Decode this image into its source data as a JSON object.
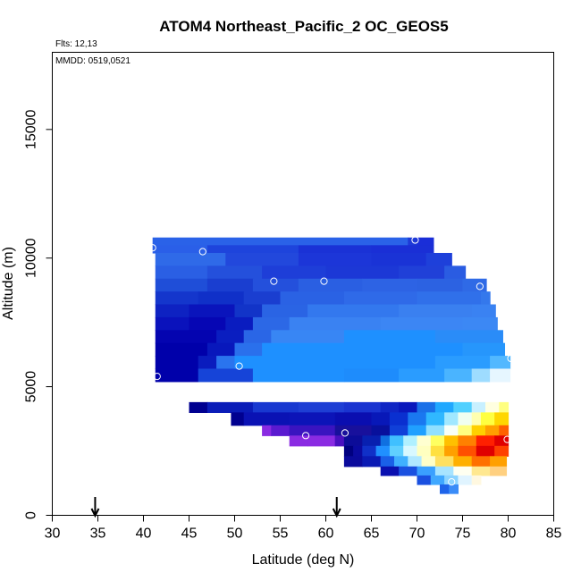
{
  "chart_data": {
    "type": "heatmap",
    "title": "ATOM4 Northeast_Pacific_2 OC_GEOS5",
    "flights_note": "Flts: 12,13",
    "dates_note": "MMDD: 0519,0521",
    "xlabel": "Latitude (deg N)",
    "ylabel": "Altitude (m)",
    "xlim": [
      30,
      85
    ],
    "ylim": [
      0,
      18000
    ],
    "x_ticks": [
      "30",
      "35",
      "40",
      "45",
      "50",
      "55",
      "60",
      "65",
      "70",
      "75",
      "80",
      "85"
    ],
    "y_ticks": [
      "0",
      "5000",
      "10000",
      "15000"
    ],
    "grid": false,
    "legend": "none",
    "arrows_lat": [
      34.7,
      61.2
    ],
    "bands": [
      {
        "y": 10500,
        "h": 300,
        "cells": [
          [
            41,
            69,
            "#2a62e8"
          ],
          [
            69,
            70,
            "#1e3ad8"
          ],
          [
            70,
            71.8,
            "#1a2ed8"
          ]
        ]
      },
      {
        "y": 10200,
        "h": 300,
        "cells": [
          [
            41,
            47,
            "#2a5fe8"
          ],
          [
            47,
            57,
            "#1e44dc"
          ],
          [
            57,
            65,
            "#1a32d6"
          ],
          [
            65,
            71.8,
            "#1a2fd6"
          ]
        ]
      },
      {
        "y": 9700,
        "h": 500,
        "cells": [
          [
            41.3,
            49,
            "#2f6ae8"
          ],
          [
            49,
            57,
            "#2248dc"
          ],
          [
            57,
            65,
            "#1c36d8"
          ],
          [
            65,
            71,
            "#1a33d6"
          ],
          [
            71,
            73.8,
            "#1e40da"
          ]
        ]
      },
      {
        "y": 9200,
        "h": 500,
        "cells": [
          [
            41.3,
            47,
            "#2a5fe4"
          ],
          [
            47,
            53,
            "#2450dc"
          ],
          [
            53,
            60,
            "#1e3ed8"
          ],
          [
            60,
            68,
            "#1c38d6"
          ],
          [
            68,
            73,
            "#2040d8"
          ],
          [
            73,
            75.3,
            "#2a5ce2"
          ]
        ]
      },
      {
        "y": 8700,
        "h": 500,
        "cells": [
          [
            41.3,
            47,
            "#1f4ed8"
          ],
          [
            47,
            52,
            "#1a3ed0"
          ],
          [
            52,
            57,
            "#2450dc"
          ],
          [
            57,
            64,
            "#2a5fe2"
          ],
          [
            64,
            70,
            "#2d63e4"
          ],
          [
            70,
            75,
            "#2c62e2"
          ],
          [
            75,
            77.6,
            "#2f6ae6"
          ]
        ]
      },
      {
        "y": 8200,
        "h": 500,
        "cells": [
          [
            41.3,
            46,
            "#1436cc"
          ],
          [
            46,
            51,
            "#1030c8"
          ],
          [
            51,
            55,
            "#1a3ed0"
          ],
          [
            55,
            62,
            "#2a62e4"
          ],
          [
            62,
            70,
            "#2f6ae8"
          ],
          [
            70,
            77,
            "#3070ea"
          ],
          [
            77,
            78,
            "#3478ec"
          ]
        ]
      },
      {
        "y": 7700,
        "h": 500,
        "cells": [
          [
            41.3,
            45,
            "#0e22c2"
          ],
          [
            45,
            50,
            "#0a14bc"
          ],
          [
            50,
            53,
            "#1234c8"
          ],
          [
            53,
            58,
            "#2a64e4"
          ],
          [
            58,
            68,
            "#3378ee"
          ],
          [
            68,
            76,
            "#3a80f0"
          ],
          [
            76,
            78.6,
            "#3a82f2"
          ]
        ]
      },
      {
        "y": 7200,
        "h": 500,
        "cells": [
          [
            41.3,
            45,
            "#0a12bc"
          ],
          [
            45,
            49,
            "#0606b4"
          ],
          [
            49,
            52,
            "#0a1cc0"
          ],
          [
            52,
            56,
            "#2c68e6"
          ],
          [
            56,
            66,
            "#3a82f2"
          ],
          [
            66,
            75,
            "#3c86f4"
          ],
          [
            75,
            78.8,
            "#3c88f4"
          ]
        ]
      },
      {
        "y": 6700,
        "h": 500,
        "cells": [
          [
            41.3,
            48,
            "#0404b0"
          ],
          [
            48,
            51,
            "#0a1ec0"
          ],
          [
            51,
            54,
            "#2a66e6"
          ],
          [
            54,
            62,
            "#3886f4"
          ],
          [
            62,
            72,
            "#1e90ff"
          ],
          [
            72,
            79.4,
            "#2a8cf8"
          ]
        ]
      },
      {
        "y": 6200,
        "h": 500,
        "cells": [
          [
            41.3,
            47,
            "#0000aa"
          ],
          [
            47,
            50,
            "#0818bc"
          ],
          [
            50,
            53,
            "#2a70ec"
          ],
          [
            53,
            62,
            "#1e90ff"
          ],
          [
            62,
            75,
            "#1e90ff"
          ],
          [
            75,
            79.6,
            "#2696fc"
          ]
        ]
      },
      {
        "y": 5700,
        "h": 500,
        "cells": [
          [
            41.3,
            46,
            "#0000aa"
          ],
          [
            46,
            48,
            "#0a1cbe"
          ],
          [
            48,
            50,
            "#2a74ee"
          ],
          [
            50,
            62,
            "#1e90ff"
          ],
          [
            62,
            72,
            "#1e90ff"
          ],
          [
            72,
            78,
            "#2a9cff"
          ],
          [
            78,
            80.2,
            "#52b8ff"
          ]
        ]
      },
      {
        "y": 5200,
        "h": 500,
        "cells": [
          [
            41.3,
            46,
            "#0000aa"
          ],
          [
            46,
            52,
            "#1644d8"
          ],
          [
            52,
            62,
            "#1e90ff"
          ],
          [
            62,
            68,
            "#1e8cfc"
          ],
          [
            68,
            73,
            "#2a9cff"
          ],
          [
            73,
            76,
            "#4ab4ff"
          ],
          [
            76,
            78,
            "#9edcff"
          ],
          [
            78,
            80.2,
            "#e6f6ff"
          ]
        ]
      },
      {
        "y": 4000,
        "h": 400,
        "cells": [
          [
            45,
            47,
            "#000090"
          ],
          [
            47,
            52,
            "#0a1cb8"
          ],
          [
            52,
            57,
            "#1838d0"
          ],
          [
            57,
            62,
            "#1e3ed4"
          ],
          [
            62,
            66,
            "#1a34d0"
          ],
          [
            66,
            68,
            "#1026c4"
          ],
          [
            68,
            70,
            "#0a18bc"
          ],
          [
            70,
            72,
            "#1a70e8"
          ],
          [
            72,
            74,
            "#20a8ff"
          ],
          [
            74,
            76,
            "#50d0ff"
          ],
          [
            76,
            77.5,
            "#c8f0ff"
          ],
          [
            77.5,
            79,
            "#ffffe0"
          ],
          [
            79,
            80,
            "#ffff80"
          ]
        ]
      },
      {
        "y": 3500,
        "h": 500,
        "cells": [
          [
            49.6,
            51,
            "#000090"
          ],
          [
            51,
            56,
            "#0a12b4"
          ],
          [
            56,
            61,
            "#0c14b8"
          ],
          [
            61,
            65,
            "#0a0eb0"
          ],
          [
            65,
            67,
            "#0818b8"
          ],
          [
            67,
            69,
            "#0a30d0"
          ],
          [
            69,
            71,
            "#1a78f0"
          ],
          [
            71,
            73,
            "#30b8ff"
          ],
          [
            73,
            74.5,
            "#a0e8ff"
          ],
          [
            74.5,
            76,
            "#f0fff0"
          ],
          [
            76,
            77,
            "#ffffb0"
          ],
          [
            77,
            78.5,
            "#ffff40"
          ],
          [
            78.5,
            80,
            "#ffd700"
          ]
        ]
      },
      {
        "y": 3100,
        "h": 400,
        "cells": [
          [
            53,
            54,
            "#8a2be2"
          ],
          [
            54,
            56,
            "#5a1ad0"
          ],
          [
            56,
            61,
            "#3a14c0"
          ],
          [
            61,
            65,
            "#18109c"
          ],
          [
            65,
            67,
            "#08109c"
          ],
          [
            67,
            69,
            "#1040d8"
          ],
          [
            69,
            71,
            "#20a0ff"
          ],
          [
            71,
            73,
            "#90e0ff"
          ],
          [
            73,
            74.5,
            "#f8fff8"
          ],
          [
            74.5,
            76,
            "#ffff80"
          ],
          [
            76,
            77.5,
            "#ffd000"
          ],
          [
            77.5,
            79,
            "#ffa000"
          ],
          [
            79,
            80,
            "#ff6000"
          ]
        ]
      },
      {
        "y": 2700,
        "h": 400,
        "cells": [
          [
            56,
            58,
            "#8a2be2"
          ],
          [
            58,
            61,
            "#8a2be2"
          ],
          [
            61,
            62,
            "#4a10c0"
          ],
          [
            62,
            64,
            "#0c0c98"
          ],
          [
            64,
            66,
            "#0820b0"
          ],
          [
            66,
            67,
            "#1070e0"
          ],
          [
            67,
            68.5,
            "#40c0ff"
          ],
          [
            68.5,
            70,
            "#b0f0ff"
          ],
          [
            70,
            71.5,
            "#ffffd0"
          ],
          [
            71.5,
            73,
            "#ffff60"
          ],
          [
            73,
            74.5,
            "#ffc000"
          ],
          [
            74.5,
            76.5,
            "#ff8000"
          ],
          [
            76.5,
            78.5,
            "#ff2000"
          ],
          [
            78.5,
            80,
            "#e00000"
          ]
        ]
      },
      {
        "y": 2300,
        "h": 400,
        "cells": [
          [
            62,
            63,
            "#000080"
          ],
          [
            63,
            64,
            "#0a0aa0"
          ],
          [
            64,
            65.5,
            "#1030c8"
          ],
          [
            65.5,
            67,
            "#2090ff"
          ],
          [
            67,
            68.5,
            "#60d0ff"
          ],
          [
            68.5,
            70,
            "#d8f8ff"
          ],
          [
            70,
            71.5,
            "#ffffc0"
          ],
          [
            71.5,
            73,
            "#ffe040"
          ],
          [
            73,
            74.5,
            "#ffa000"
          ],
          [
            74.5,
            76.5,
            "#ff5000"
          ],
          [
            76.5,
            78.5,
            "#e00000"
          ],
          [
            78.5,
            80,
            "#ff4000"
          ]
        ]
      },
      {
        "y": 1900,
        "h": 400,
        "cells": [
          [
            62,
            64,
            "#0a0a9c"
          ],
          [
            64,
            66,
            "#0a1ab4"
          ],
          [
            66,
            67.5,
            "#1a60e8"
          ],
          [
            67.5,
            69,
            "#40b0ff"
          ],
          [
            69,
            70.5,
            "#b0e8ff"
          ],
          [
            70.5,
            72,
            "#ffffc8"
          ],
          [
            72,
            74,
            "#ffe060"
          ],
          [
            74,
            76,
            "#ffb000"
          ],
          [
            76,
            78,
            "#ff7000"
          ],
          [
            78,
            79.8,
            "#ffa000"
          ]
        ]
      },
      {
        "y": 1550,
        "h": 350,
        "cells": [
          [
            66,
            68,
            "#0a10b0"
          ],
          [
            68,
            70,
            "#1a50e0"
          ],
          [
            70,
            72,
            "#3aa0ff"
          ],
          [
            72,
            74,
            "#a8e4ff"
          ],
          [
            74,
            76,
            "#fffff0"
          ],
          [
            76,
            78,
            "#ffe890"
          ],
          [
            78,
            79.8,
            "#ffd080"
          ]
        ]
      },
      {
        "y": 1200,
        "h": 350,
        "cells": [
          [
            70,
            71.5,
            "#1a50e0"
          ],
          [
            71.5,
            73,
            "#40a8ff"
          ],
          [
            73,
            74.5,
            "#8cd4ff"
          ],
          [
            74.5,
            76,
            "#e0f4ff"
          ],
          [
            76,
            77,
            "#fff8e0"
          ]
        ]
      },
      {
        "y": 850,
        "h": 350,
        "cells": [
          [
            72.5,
            73.5,
            "#1e64ea"
          ],
          [
            73.5,
            74.5,
            "#3a8cf8"
          ]
        ]
      }
    ],
    "flight_points": [
      {
        "lat": 41.0,
        "alt": 10400
      },
      {
        "lat": 46.5,
        "alt": 10250
      },
      {
        "lat": 54.3,
        "alt": 9100
      },
      {
        "lat": 59.8,
        "alt": 9100
      },
      {
        "lat": 69.8,
        "alt": 10700
      },
      {
        "lat": 76.9,
        "alt": 8900
      },
      {
        "lat": 80.3,
        "alt": 6100
      },
      {
        "lat": 50.5,
        "alt": 5800
      },
      {
        "lat": 41.5,
        "alt": 5400
      },
      {
        "lat": 57.8,
        "alt": 3100
      },
      {
        "lat": 62.1,
        "alt": 3200
      },
      {
        "lat": 79.9,
        "alt": 2950
      },
      {
        "lat": 73.8,
        "alt": 1300
      }
    ],
    "colors": {
      "flight_point_stroke": "#ffffff",
      "frame": "#000000",
      "arrow": "#000000"
    }
  }
}
